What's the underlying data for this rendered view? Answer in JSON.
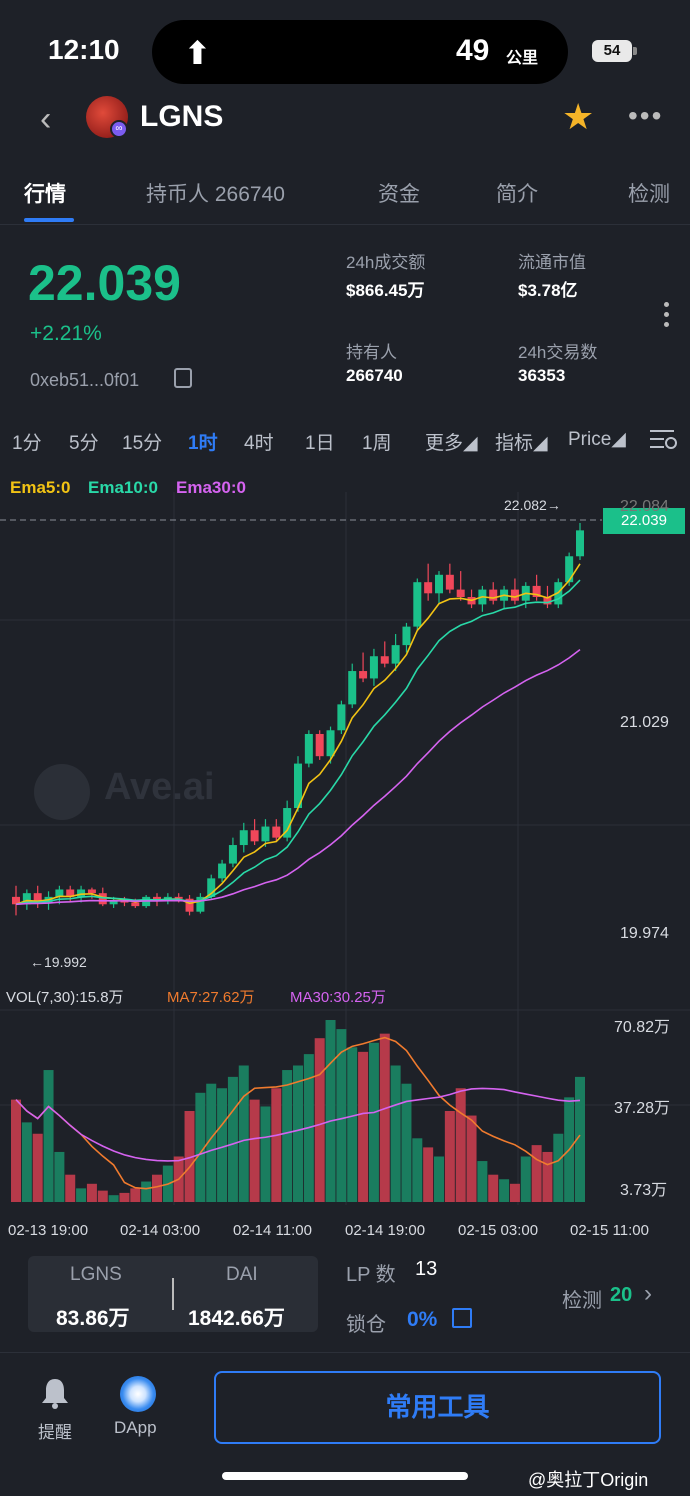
{
  "status_bar": {
    "time": "12:10",
    "speed": "49",
    "speed_unit": "公里",
    "battery": "54",
    "arrow": "⬆"
  },
  "header": {
    "back": "‹",
    "token": "LGNS",
    "logo_badge": "∞"
  },
  "tabs": [
    {
      "label": "行情",
      "active": true
    },
    {
      "label": "持币人 266740",
      "active": false
    },
    {
      "label": "资金",
      "active": false
    },
    {
      "label": "简介",
      "active": false
    },
    {
      "label": "检测",
      "active": false
    }
  ],
  "price": {
    "value": "22.039",
    "change": "+2.21%",
    "address": "0xeb51...0f01"
  },
  "stats": {
    "volume_label": "24h成交额",
    "volume": "$866.45万",
    "mcap_label": "流通市值",
    "mcap": "$3.78亿",
    "holders_label": "持有人",
    "holders": "266740",
    "txns_label": "24h交易数",
    "txns": "36353"
  },
  "intervals": [
    {
      "label": "1分",
      "active": false
    },
    {
      "label": "5分",
      "active": false
    },
    {
      "label": "15分",
      "active": false
    },
    {
      "label": "1时",
      "active": true
    },
    {
      "label": "4时",
      "active": false
    },
    {
      "label": "1日",
      "active": false
    },
    {
      "label": "1周",
      "active": false
    },
    {
      "label": "更多◢",
      "active": false
    },
    {
      "label": "指标◢",
      "active": false
    },
    {
      "label": "Price◢",
      "active": false
    }
  ],
  "ema_legend": {
    "ema5": "Ema5:0",
    "ema10": "Ema10:0",
    "ema30": "Ema30:0"
  },
  "colors": {
    "up": "#1bc08a",
    "down": "#f0475a",
    "ema5": "#f2c314",
    "ema10": "#29d9a8",
    "ema30": "#d563f0",
    "accent": "#2f7cf6",
    "ma7": "#f07b2e",
    "ma30": "#d563f0"
  },
  "watermark": "Ave.ai",
  "chart_data": {
    "type": "candlestick",
    "price_axis": [
      "22.084",
      "21.029",
      "19.974"
    ],
    "current_price_tag": "22.039",
    "high_marker": "22.082→",
    "low_marker": "←19.992",
    "ylim": [
      19.8,
      22.15
    ],
    "candles": [
      [
        20.06,
        20.12,
        19.96,
        20.02
      ],
      [
        20.02,
        20.1,
        19.99,
        20.08
      ],
      [
        20.08,
        20.12,
        20.0,
        20.03
      ],
      [
        20.03,
        20.09,
        19.99,
        20.06
      ],
      [
        20.06,
        20.12,
        20.02,
        20.1
      ],
      [
        20.1,
        20.12,
        20.03,
        20.06
      ],
      [
        20.06,
        20.12,
        20.03,
        20.1
      ],
      [
        20.1,
        20.11,
        20.05,
        20.08
      ],
      [
        20.08,
        20.11,
        20.01,
        20.02
      ],
      [
        20.02,
        20.06,
        20.0,
        20.04
      ],
      [
        20.04,
        20.06,
        20.01,
        20.03
      ],
      [
        20.03,
        20.05,
        20.0,
        20.01
      ],
      [
        20.01,
        20.07,
        20.0,
        20.06
      ],
      [
        20.06,
        20.08,
        20.01,
        20.04
      ],
      [
        20.04,
        20.08,
        20.02,
        20.06
      ],
      [
        20.06,
        20.08,
        20.03,
        20.05
      ],
      [
        20.05,
        20.07,
        19.96,
        19.98
      ],
      [
        19.98,
        20.08,
        19.97,
        20.06
      ],
      [
        20.06,
        20.18,
        20.05,
        20.16
      ],
      [
        20.16,
        20.26,
        20.14,
        20.24
      ],
      [
        20.24,
        20.38,
        20.22,
        20.34
      ],
      [
        20.34,
        20.46,
        20.3,
        20.42
      ],
      [
        20.42,
        20.48,
        20.34,
        20.36
      ],
      [
        20.36,
        20.48,
        20.33,
        20.44
      ],
      [
        20.44,
        20.48,
        20.36,
        20.38
      ],
      [
        20.38,
        20.58,
        20.36,
        20.54
      ],
      [
        20.54,
        20.82,
        20.52,
        20.78
      ],
      [
        20.78,
        20.96,
        20.76,
        20.94
      ],
      [
        20.94,
        20.96,
        20.8,
        20.82
      ],
      [
        20.82,
        20.98,
        20.78,
        20.96
      ],
      [
        20.96,
        21.12,
        20.94,
        21.1
      ],
      [
        21.1,
        21.32,
        21.08,
        21.28
      ],
      [
        21.28,
        21.38,
        21.22,
        21.24
      ],
      [
        21.24,
        21.4,
        21.2,
        21.36
      ],
      [
        21.36,
        21.44,
        21.3,
        21.32
      ],
      [
        21.32,
        21.48,
        21.28,
        21.42
      ],
      [
        21.42,
        21.54,
        21.38,
        21.52
      ],
      [
        21.52,
        21.78,
        21.5,
        21.76
      ],
      [
        21.76,
        21.86,
        21.66,
        21.7
      ],
      [
        21.7,
        21.82,
        21.64,
        21.8
      ],
      [
        21.8,
        21.86,
        21.7,
        21.72
      ],
      [
        21.72,
        21.82,
        21.66,
        21.68
      ],
      [
        21.68,
        21.72,
        21.62,
        21.64
      ],
      [
        21.64,
        21.74,
        21.6,
        21.72
      ],
      [
        21.72,
        21.76,
        21.64,
        21.66
      ],
      [
        21.66,
        21.74,
        21.62,
        21.72
      ],
      [
        21.72,
        21.78,
        21.64,
        21.66
      ],
      [
        21.66,
        21.76,
        21.62,
        21.74
      ],
      [
        21.74,
        21.8,
        21.66,
        21.68
      ],
      [
        21.68,
        21.74,
        21.62,
        21.64
      ],
      [
        21.64,
        21.78,
        21.62,
        21.76
      ],
      [
        21.76,
        21.92,
        21.74,
        21.9
      ],
      [
        21.9,
        22.08,
        21.88,
        22.04
      ]
    ],
    "volume_axis": [
      "70.82万",
      "37.28万",
      "3.73万"
    ],
    "volume_legend": {
      "vol": "VOL(7,30):15.8万",
      "ma7": "MA7:27.62万",
      "ma30": "MA30:30.25万"
    },
    "volumes": [
      45,
      35,
      30,
      58,
      22,
      12,
      6,
      8,
      5,
      3,
      4,
      6,
      9,
      12,
      16,
      20,
      40,
      48,
      52,
      50,
      55,
      60,
      45,
      42,
      50,
      58,
      60,
      65,
      72,
      80,
      76,
      68,
      66,
      70,
      74,
      60,
      52,
      28,
      24,
      20,
      40,
      50,
      38,
      18,
      12,
      10,
      8,
      20,
      25,
      22,
      30,
      46,
      55
    ],
    "time_labels": [
      "02-13 19:00",
      "02-14 03:00",
      "02-14 11:00",
      "02-14 19:00",
      "02-15 03:00",
      "02-15 11:00"
    ]
  },
  "pool": {
    "token_a": "LGNS",
    "amount_a": "83.86万",
    "token_b": "DAI",
    "amount_b": "1842.66万"
  },
  "lp": {
    "label": "LP 数",
    "value": "13",
    "lock_label": "锁仓",
    "lock_value": "0%"
  },
  "check": {
    "label": "检测",
    "value": "20",
    "chevron": "›"
  },
  "bottom_nav": {
    "remind": "提醒",
    "dapp": "DApp",
    "tools": "常用工具"
  },
  "footer": {
    "weibo": "@奥拉丁Origin"
  }
}
